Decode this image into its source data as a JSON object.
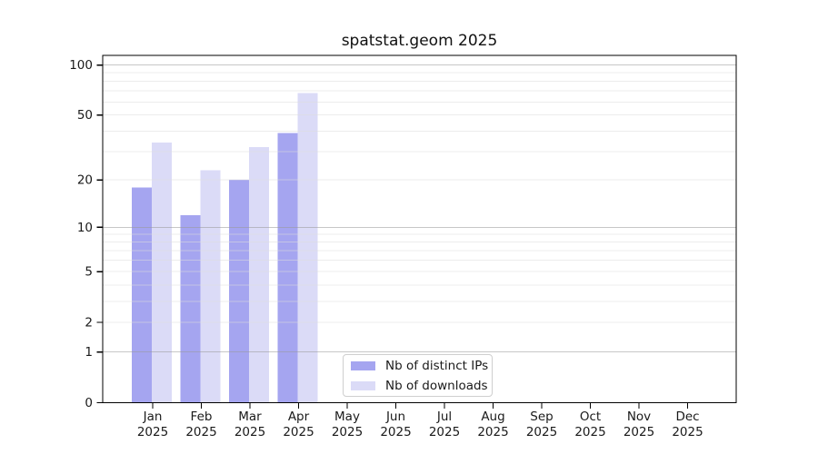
{
  "title": "spatstat.geom 2025",
  "chart_data": {
    "type": "bar",
    "title": "spatstat.geom 2025",
    "categories": [
      "Jan",
      "Feb",
      "Mar",
      "Apr",
      "May",
      "Jun",
      "Jul",
      "Aug",
      "Sep",
      "Oct",
      "Nov",
      "Dec"
    ],
    "category_year": "2025",
    "series": [
      {
        "name": "Nb of distinct IPs",
        "color": "#a5a5f0",
        "values": [
          18,
          12,
          20,
          39,
          0,
          0,
          0,
          0,
          0,
          0,
          0,
          0
        ]
      },
      {
        "name": "Nb of downloads",
        "color": "#dbdbf7",
        "values": [
          34,
          23,
          32,
          68,
          0,
          0,
          0,
          0,
          0,
          0,
          0,
          0
        ]
      }
    ],
    "scale": "log1p",
    "y_ticks": [
      0,
      1,
      2,
      5,
      10,
      20,
      50,
      100
    ],
    "ylim": [
      0,
      112
    ],
    "grid": {
      "major": [
        1,
        10,
        100
      ],
      "minor": [
        2,
        3,
        4,
        5,
        6,
        7,
        8,
        9,
        20,
        30,
        40,
        50,
        60,
        70,
        80,
        90
      ]
    },
    "legend_position": "bottom-center",
    "colors": {
      "frame": "#000000",
      "tick_text": "#1a1a1a",
      "grid_major": "#999999",
      "grid_minor": "#dddddd"
    }
  }
}
